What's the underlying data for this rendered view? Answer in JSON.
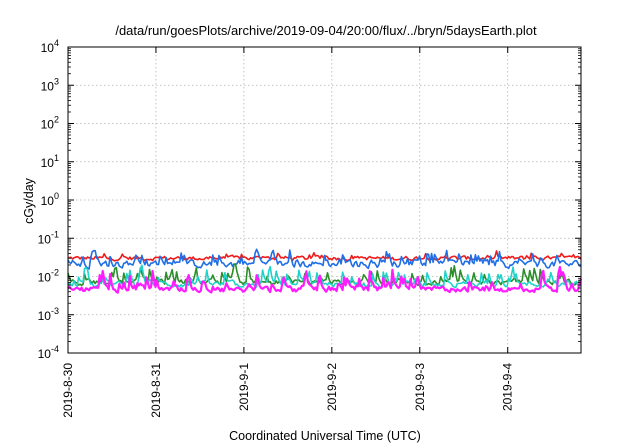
{
  "chart_data": {
    "type": "line",
    "title": "/data/run/goesPlots/archive/2019-09-04/20:00/flux/../bryn/5daysEarth.plot",
    "xlabel": "Coordinated Universal Time (UTC)",
    "ylabel": "cGy/day",
    "yscale": "log",
    "ylim": [
      0.0001,
      10000
    ],
    "y_ticks": [
      {
        "base": "10",
        "exp": "-4",
        "value": 0.0001
      },
      {
        "base": "10",
        "exp": "-3",
        "value": 0.001
      },
      {
        "base": "10",
        "exp": "-2",
        "value": 0.01
      },
      {
        "base": "10",
        "exp": "-1",
        "value": 0.1
      },
      {
        "base": "10",
        "exp": "0",
        "value": 1
      },
      {
        "base": "10",
        "exp": "1",
        "value": 10
      },
      {
        "base": "10",
        "exp": "2",
        "value": 100
      },
      {
        "base": "10",
        "exp": "3",
        "value": 1000
      },
      {
        "base": "10",
        "exp": "4",
        "value": 10000
      }
    ],
    "xlim": [
      "2019-08-30 00:00",
      "2019-09-04 20:00"
    ],
    "x_ticks": [
      "2019-8-30",
      "2019-8-31",
      "2019-9-1",
      "2019-9-2",
      "2019-9-3",
      "2019-9-4"
    ],
    "grid": true,
    "series": [
      {
        "color": "#ee1c1c",
        "base": 0.03,
        "spread": 0.35,
        "spike_prob": 0.1,
        "spike_gain": 0.5
      },
      {
        "color": "#1f6fe6",
        "base": 0.021,
        "spread": 0.6,
        "spike_prob": 0.22,
        "spike_gain": 1.1
      },
      {
        "color": "#2a8f2a",
        "base": 0.007,
        "spread": 0.45,
        "spike_prob": 0.2,
        "spike_gain": 1.3
      },
      {
        "color": "#1fd3c8",
        "base": 0.0062,
        "spread": 0.45,
        "spike_prob": 0.2,
        "spike_gain": 1.3
      },
      {
        "color": "#ff1cff",
        "base": 0.0046,
        "spread": 0.45,
        "spike_prob": 0.24,
        "spike_gain": 1.6
      }
    ]
  }
}
